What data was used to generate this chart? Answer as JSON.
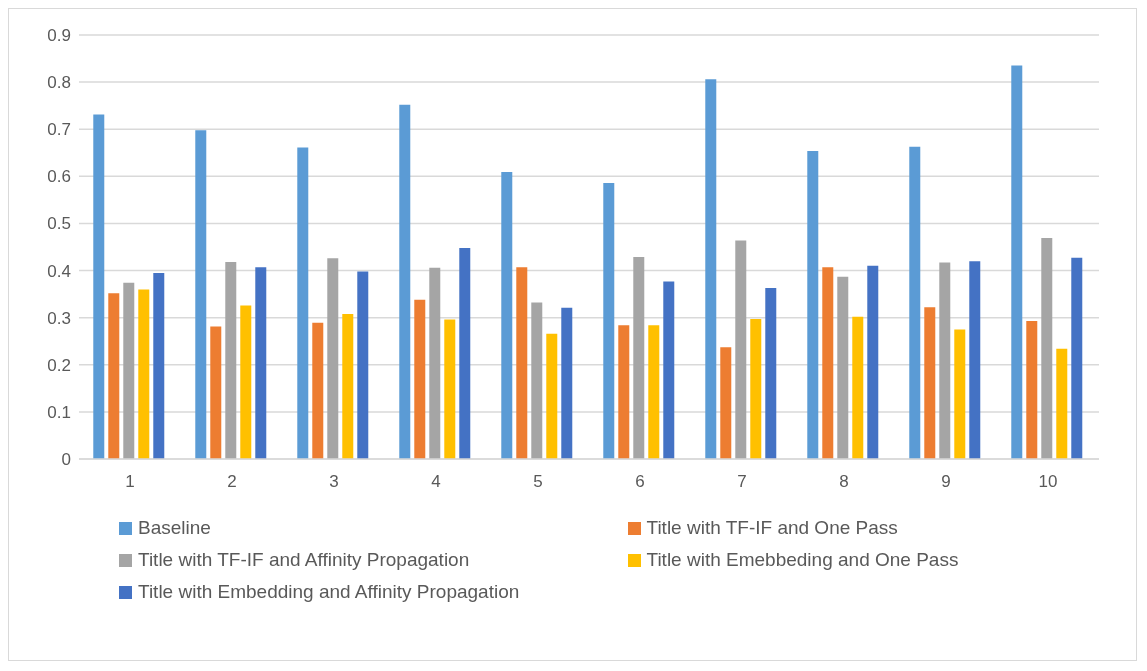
{
  "chart_data": {
    "type": "bar",
    "categories": [
      "1",
      "2",
      "3",
      "4",
      "5",
      "6",
      "7",
      "8",
      "9",
      "10"
    ],
    "series": [
      {
        "name": "Baseline",
        "color": "#5b9bd5",
        "values": [
          0.731,
          0.698,
          0.661,
          0.752,
          0.609,
          0.586,
          0.806,
          0.654,
          0.663,
          0.835
        ]
      },
      {
        "name": "Title with TF-IF and One Pass",
        "color": "#ed7d31",
        "values": [
          0.352,
          0.281,
          0.289,
          0.338,
          0.407,
          0.284,
          0.237,
          0.407,
          0.322,
          0.293
        ]
      },
      {
        "name": "Title with TF-IF and Affinity Propagation",
        "color": "#a5a5a5",
        "values": [
          0.374,
          0.418,
          0.426,
          0.406,
          0.332,
          0.429,
          0.464,
          0.387,
          0.417,
          0.469
        ]
      },
      {
        "name": "Title with Emebbeding and One Pass",
        "color": "#ffc000",
        "values": [
          0.36,
          0.326,
          0.308,
          0.296,
          0.266,
          0.284,
          0.297,
          0.302,
          0.275,
          0.234
        ]
      },
      {
        "name": "Title with Embedding and Affinity Propagation",
        "color": "#4472c4",
        "values": [
          0.395,
          0.407,
          0.398,
          0.448,
          0.321,
          0.377,
          0.363,
          0.41,
          0.42,
          0.427
        ]
      }
    ],
    "ylim": [
      0,
      0.9
    ],
    "yticks": [
      0,
      0.1,
      0.2,
      0.3,
      0.4,
      0.5,
      0.6,
      0.7,
      0.8,
      0.9
    ],
    "grid": "y",
    "legend": "bottom"
  }
}
